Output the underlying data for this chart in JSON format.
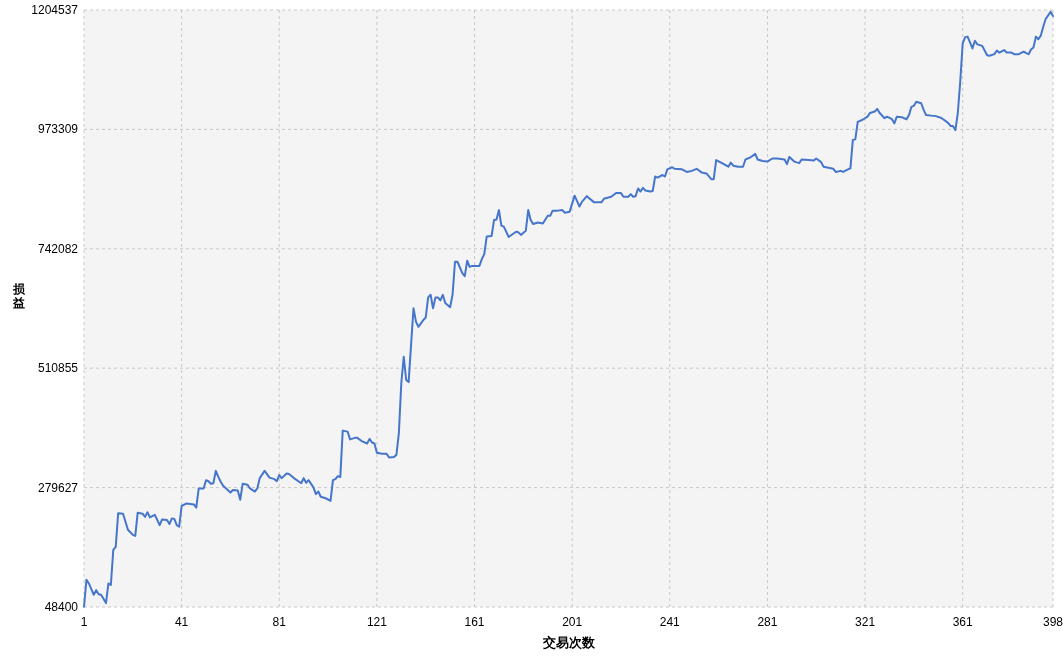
{
  "chart_data": {
    "type": "line",
    "xlabel": "交易次数",
    "ylabel": "损益",
    "color": "#4676cc",
    "grid": true,
    "xlim": [
      1,
      398
    ],
    "xticks": [
      1,
      41,
      81,
      121,
      161,
      201,
      241,
      281,
      321,
      361,
      398
    ],
    "ylim": [
      48400,
      1204537
    ],
    "yticks": [
      48400,
      279627,
      510855,
      742082,
      973309,
      1204537
    ],
    "x": [
      1,
      2,
      3,
      5,
      6,
      7,
      8,
      10,
      11,
      12,
      13,
      14,
      15,
      17,
      19,
      21,
      22,
      23,
      25,
      26,
      27,
      28,
      30,
      32,
      33,
      35,
      36,
      37,
      38,
      39,
      40,
      41,
      43,
      46,
      47,
      48,
      50,
      51,
      52,
      53,
      54,
      55,
      56,
      57,
      58,
      61,
      62,
      64,
      65,
      66,
      68,
      69,
      71,
      72,
      73,
      75,
      77,
      79,
      80,
      81,
      82,
      84,
      85,
      87,
      90,
      91,
      92,
      93,
      95,
      96,
      97,
      98,
      100,
      102,
      103,
      104,
      105,
      106,
      107,
      109,
      110,
      112,
      113,
      115,
      117,
      118,
      119,
      120,
      121,
      123,
      125,
      126,
      128,
      129,
      130,
      131,
      132,
      133,
      134,
      135,
      136,
      137,
      138,
      140,
      141,
      142,
      143,
      144,
      145,
      146,
      147,
      148,
      149,
      151,
      152,
      153,
      154,
      156,
      157,
      158,
      159,
      160,
      163,
      164,
      165,
      166,
      168,
      169,
      170,
      171,
      172,
      173,
      175,
      178,
      179,
      180,
      182,
      183,
      184,
      185,
      187,
      189,
      191,
      192,
      193,
      195,
      197,
      198,
      200,
      202,
      204,
      205,
      207,
      210,
      213,
      214,
      217,
      219,
      221,
      222,
      224,
      225,
      226,
      227,
      228,
      229,
      230,
      231,
      233,
      234,
      235,
      236,
      238,
      239,
      240,
      242,
      243,
      246,
      248,
      250,
      252,
      254,
      256,
      258,
      259,
      260,
      262,
      265,
      266,
      267,
      269,
      271,
      272,
      274,
      276,
      277,
      279,
      281,
      283,
      285,
      288,
      289,
      290,
      292,
      294,
      295,
      298,
      300,
      301,
      303,
      304,
      306,
      308,
      309,
      311,
      312,
      314,
      315,
      316,
      317,
      318,
      320,
      322,
      323,
      325,
      326,
      327,
      329,
      330,
      332,
      333,
      334,
      336,
      338,
      339,
      340,
      341,
      342,
      344,
      345,
      346,
      348,
      350,
      352,
      353,
      355,
      356,
      357,
      358,
      359,
      360,
      361,
      362,
      363,
      364,
      365,
      366,
      367,
      369,
      370,
      371,
      372,
      374,
      375,
      376,
      378,
      379,
      381,
      382,
      384,
      386,
      387,
      388,
      389,
      390,
      391,
      392,
      393,
      394,
      395,
      397,
      398
    ],
    "values": [
      49000,
      101000,
      94000,
      72000,
      81000,
      73000,
      72000,
      56000,
      94000,
      91000,
      159000,
      165000,
      230000,
      229000,
      198000,
      188000,
      186000,
      231000,
      229000,
      223000,
      232000,
      222000,
      227000,
      207000,
      218000,
      217000,
      209000,
      220000,
      219000,
      207000,
      204000,
      244000,
      249000,
      247000,
      241000,
      278000,
      278000,
      294000,
      292000,
      287000,
      288000,
      312000,
      301000,
      291000,
      283000,
      270000,
      275000,
      274000,
      256000,
      287000,
      285000,
      278000,
      272000,
      278000,
      298000,
      312000,
      299000,
      296000,
      292000,
      304000,
      298000,
      307000,
      306000,
      298000,
      288000,
      298000,
      289000,
      294000,
      280000,
      267000,
      272000,
      262000,
      259000,
      254000,
      294000,
      296000,
      302000,
      300000,
      390000,
      388000,
      373000,
      376000,
      376000,
      369000,
      365000,
      374000,
      367000,
      365000,
      347000,
      345000,
      345000,
      338000,
      339000,
      343000,
      385000,
      482000,
      533000,
      488000,
      484000,
      556000,
      627000,
      601000,
      591000,
      604000,
      609000,
      648000,
      653000,
      627000,
      648000,
      648000,
      642000,
      653000,
      637000,
      629000,
      653000,
      717000,
      717000,
      695000,
      689000,
      719000,
      707000,
      709000,
      709000,
      722000,
      732000,
      766000,
      767000,
      798000,
      799000,
      817000,
      787000,
      785000,
      765000,
      775000,
      774000,
      769000,
      777000,
      817000,
      798000,
      790000,
      793000,
      791000,
      806000,
      806000,
      816000,
      816000,
      817000,
      812000,
      814000,
      845000,
      824000,
      833000,
      844000,
      832000,
      832000,
      839000,
      843000,
      850000,
      850000,
      843000,
      843000,
      848000,
      843000,
      844000,
      859000,
      853000,
      860000,
      855000,
      853000,
      854000,
      882000,
      880000,
      885000,
      882000,
      896000,
      900000,
      897000,
      896000,
      891000,
      893000,
      897000,
      890000,
      888000,
      877000,
      877000,
      914000,
      909000,
      901000,
      909000,
      903000,
      901000,
      901000,
      915000,
      919000,
      926000,
      915000,
      912000,
      911000,
      917000,
      917000,
      915000,
      906000,
      920000,
      911000,
      908000,
      915000,
      914000,
      913000,
      917000,
      910000,
      901000,
      899000,
      897000,
      891000,
      893000,
      891000,
      896000,
      898000,
      953000,
      954000,
      988000,
      992000,
      998000,
      1005000,
      1008000,
      1013000,
      1005000,
      995000,
      998000,
      993000,
      985000,
      998000,
      997000,
      993000,
      1001000,
      1017000,
      1019000,
      1027000,
      1024000,
      1011000,
      1001000,
      1000000,
      999000,
      996000,
      993000,
      986000,
      980000,
      980000,
      972000,
      1005000,
      1066000,
      1140000,
      1152000,
      1153000,
      1142000,
      1130000,
      1145000,
      1138000,
      1135000,
      1126000,
      1117000,
      1116000,
      1119000,
      1126000,
      1122000,
      1127000,
      1122000,
      1122000,
      1119000,
      1119000,
      1124000,
      1121000,
      1119000,
      1128000,
      1132000,
      1153000,
      1148000,
      1155000,
      1172000,
      1187000,
      1201000,
      1193000
    ]
  }
}
